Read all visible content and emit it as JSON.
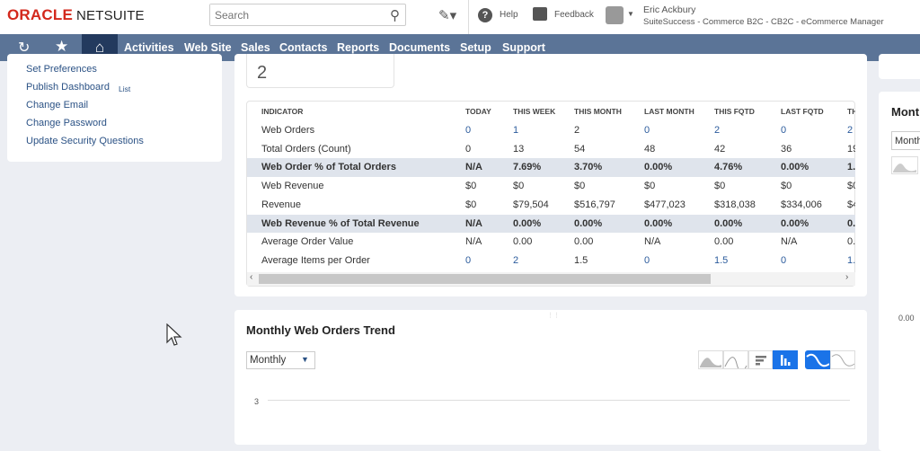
{
  "header": {
    "logo": {
      "brand": "ORACLE",
      "product": "NETSUITE"
    },
    "search_placeholder": "Search",
    "help": "Help",
    "feedback": "Feedback",
    "user_name": "Eric Ackbury",
    "user_role": "SuiteSuccess - Commerce B2C - CB2C - eCommerce Manager"
  },
  "nav": {
    "items": [
      "Activities",
      "Web Site",
      "Sales",
      "Contacts",
      "Reports",
      "Documents",
      "Setup",
      "Support"
    ]
  },
  "settings": {
    "links": [
      "Set Preferences",
      "Publish Dashboard",
      "Change Email",
      "Change Password",
      "Update Security Questions"
    ],
    "list_link": "List"
  },
  "kpi_value": "2",
  "table": {
    "headers": [
      "INDICATOR",
      "TODAY",
      "THIS WEEK",
      "THIS MONTH",
      "LAST MONTH",
      "THIS FQTD",
      "LAST FQTD",
      "TH"
    ],
    "rows": [
      {
        "label": "Web Orders",
        "hl": false,
        "cells": [
          [
            "0",
            1
          ],
          [
            "1",
            1
          ],
          [
            "2",
            0
          ],
          [
            "0",
            1
          ],
          [
            "2",
            1
          ],
          [
            "0",
            1
          ],
          [
            "2",
            1
          ]
        ]
      },
      {
        "label": "Total Orders (Count)",
        "hl": false,
        "cells": [
          [
            "0",
            0
          ],
          [
            "13",
            0
          ],
          [
            "54",
            0
          ],
          [
            "48",
            0
          ],
          [
            "42",
            0
          ],
          [
            "36",
            0
          ],
          [
            "19",
            0
          ]
        ]
      },
      {
        "label": "Web Order % of Total Orders",
        "hl": true,
        "cells": [
          [
            "N/A",
            0
          ],
          [
            "7.69%",
            0
          ],
          [
            "3.70%",
            0
          ],
          [
            "0.00%",
            0
          ],
          [
            "4.76%",
            0
          ],
          [
            "0.00%",
            0
          ],
          [
            "1.",
            0
          ]
        ]
      },
      {
        "label": "Web Revenue",
        "hl": false,
        "cells": [
          [
            "$0",
            0
          ],
          [
            "$0",
            0
          ],
          [
            "$0",
            0
          ],
          [
            "$0",
            0
          ],
          [
            "$0",
            0
          ],
          [
            "$0",
            0
          ],
          [
            "$0",
            0
          ]
        ]
      },
      {
        "label": "Revenue",
        "hl": false,
        "cells": [
          [
            "$0",
            0
          ],
          [
            "$79,504",
            0
          ],
          [
            "$516,797",
            0
          ],
          [
            "$477,023",
            0
          ],
          [
            "$318,038",
            0
          ],
          [
            "$334,006",
            0
          ],
          [
            "$4",
            0
          ]
        ]
      },
      {
        "label": "Web Revenue % of Total Revenue",
        "hl": true,
        "cells": [
          [
            "N/A",
            0
          ],
          [
            "0.00%",
            0
          ],
          [
            "0.00%",
            0
          ],
          [
            "0.00%",
            0
          ],
          [
            "0.00%",
            0
          ],
          [
            "0.00%",
            0
          ],
          [
            "0.",
            0
          ]
        ]
      },
      {
        "label": "Average Order Value",
        "hl": false,
        "cells": [
          [
            "N/A",
            0
          ],
          [
            "0.00",
            0
          ],
          [
            "0.00",
            0
          ],
          [
            "N/A",
            0
          ],
          [
            "0.00",
            0
          ],
          [
            "N/A",
            0
          ],
          [
            "0.",
            0
          ]
        ]
      },
      {
        "label": "Average Items per Order",
        "hl": false,
        "cells": [
          [
            "0",
            1
          ],
          [
            "2",
            1
          ],
          [
            "1.5",
            0
          ],
          [
            "0",
            1
          ],
          [
            "1.5",
            1
          ],
          [
            "0",
            1
          ],
          [
            "1.",
            1
          ]
        ]
      }
    ]
  },
  "trend": {
    "title": "Monthly Web Orders Trend",
    "period": "Monthly",
    "y_tick": "3",
    "active_chart": "column",
    "active_line": "spline"
  },
  "right": {
    "title": "Mont",
    "period": "Month",
    "value": "0.00"
  },
  "colors": {
    "nav": "#5b7497",
    "home": "#233a5e",
    "accent": "#1a73e8",
    "link": "#2b5285"
  }
}
